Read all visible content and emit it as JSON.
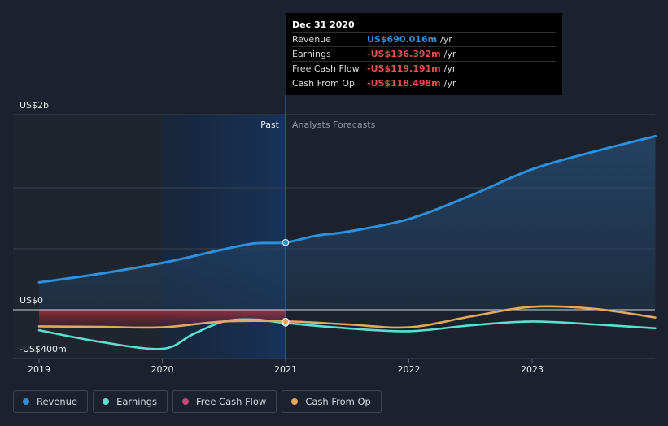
{
  "tooltip": {
    "date": "Dec 31 2020",
    "rows": [
      {
        "label": "Revenue",
        "value": "US$690.016m",
        "unit": "/yr",
        "color": "#2e8fdb"
      },
      {
        "label": "Earnings",
        "value": "-US$136.392m",
        "unit": "/yr",
        "color": "#e84f4f"
      },
      {
        "label": "Free Cash Flow",
        "value": "-US$119.191m",
        "unit": "/yr",
        "color": "#e84f4f"
      },
      {
        "label": "Cash From Op",
        "value": "-US$118.498m",
        "unit": "/yr",
        "color": "#e84f4f"
      }
    ]
  },
  "legend": [
    {
      "label": "Revenue",
      "color": "#2e8fdb"
    },
    {
      "label": "Earnings",
      "color": "#5be0cf"
    },
    {
      "label": "Free Cash Flow",
      "color": "#c8457a"
    },
    {
      "label": "Cash From Op",
      "color": "#e3a860"
    }
  ],
  "chart_data": {
    "type": "line",
    "title": "",
    "xlabel": "",
    "ylabel": "",
    "x_ticks": [
      "2019",
      "2020",
      "2021",
      "2022",
      "2023"
    ],
    "y_tick_labels": [
      "US$2b",
      "US$0",
      "-US$400m"
    ],
    "ylim": [
      -400,
      2000
    ],
    "xlim": [
      2019.0,
      2024.0
    ],
    "grid": true,
    "legend_position": "bottom-left",
    "past_label": "Past",
    "forecast_label": "Analysts Forecasts",
    "divider_x": 2021.0,
    "highlight_x": 2021.0,
    "series": [
      {
        "name": "Revenue",
        "color": "#2e8fdb",
        "area": true,
        "points": [
          [
            2019.0,
            280
          ],
          [
            2019.5,
            370
          ],
          [
            2020.0,
            480
          ],
          [
            2020.5,
            620
          ],
          [
            2020.75,
            680
          ],
          [
            2021.0,
            690
          ],
          [
            2021.25,
            760
          ],
          [
            2021.5,
            800
          ],
          [
            2022.0,
            930
          ],
          [
            2022.5,
            1170
          ],
          [
            2023.0,
            1440
          ],
          [
            2023.5,
            1620
          ],
          [
            2024.0,
            1780
          ]
        ]
      },
      {
        "name": "Earnings",
        "color": "#5be0cf",
        "area": false,
        "points": [
          [
            2019.0,
            -210
          ],
          [
            2019.5,
            -330
          ],
          [
            2020.0,
            -400
          ],
          [
            2020.25,
            -250
          ],
          [
            2020.5,
            -120
          ],
          [
            2020.75,
            -100
          ],
          [
            2021.0,
            -136
          ],
          [
            2021.5,
            -190
          ],
          [
            2022.0,
            -220
          ],
          [
            2022.5,
            -160
          ],
          [
            2023.0,
            -120
          ],
          [
            2023.5,
            -150
          ],
          [
            2024.0,
            -190
          ]
        ]
      },
      {
        "name": "Free Cash Flow",
        "color": "#c8457a",
        "area": true,
        "points": [
          [
            2019.0,
            -170
          ],
          [
            2019.5,
            -175
          ],
          [
            2020.0,
            -180
          ],
          [
            2020.5,
            -120
          ],
          [
            2021.0,
            -119
          ]
        ]
      },
      {
        "name": "Cash From Op",
        "color": "#e3a860",
        "area": false,
        "points": [
          [
            2019.0,
            -170
          ],
          [
            2019.5,
            -175
          ],
          [
            2020.0,
            -180
          ],
          [
            2020.5,
            -120
          ],
          [
            2021.0,
            -118
          ],
          [
            2021.5,
            -150
          ],
          [
            2022.0,
            -180
          ],
          [
            2022.5,
            -70
          ],
          [
            2023.0,
            30
          ],
          [
            2023.5,
            10
          ],
          [
            2024.0,
            -80
          ]
        ]
      }
    ]
  }
}
